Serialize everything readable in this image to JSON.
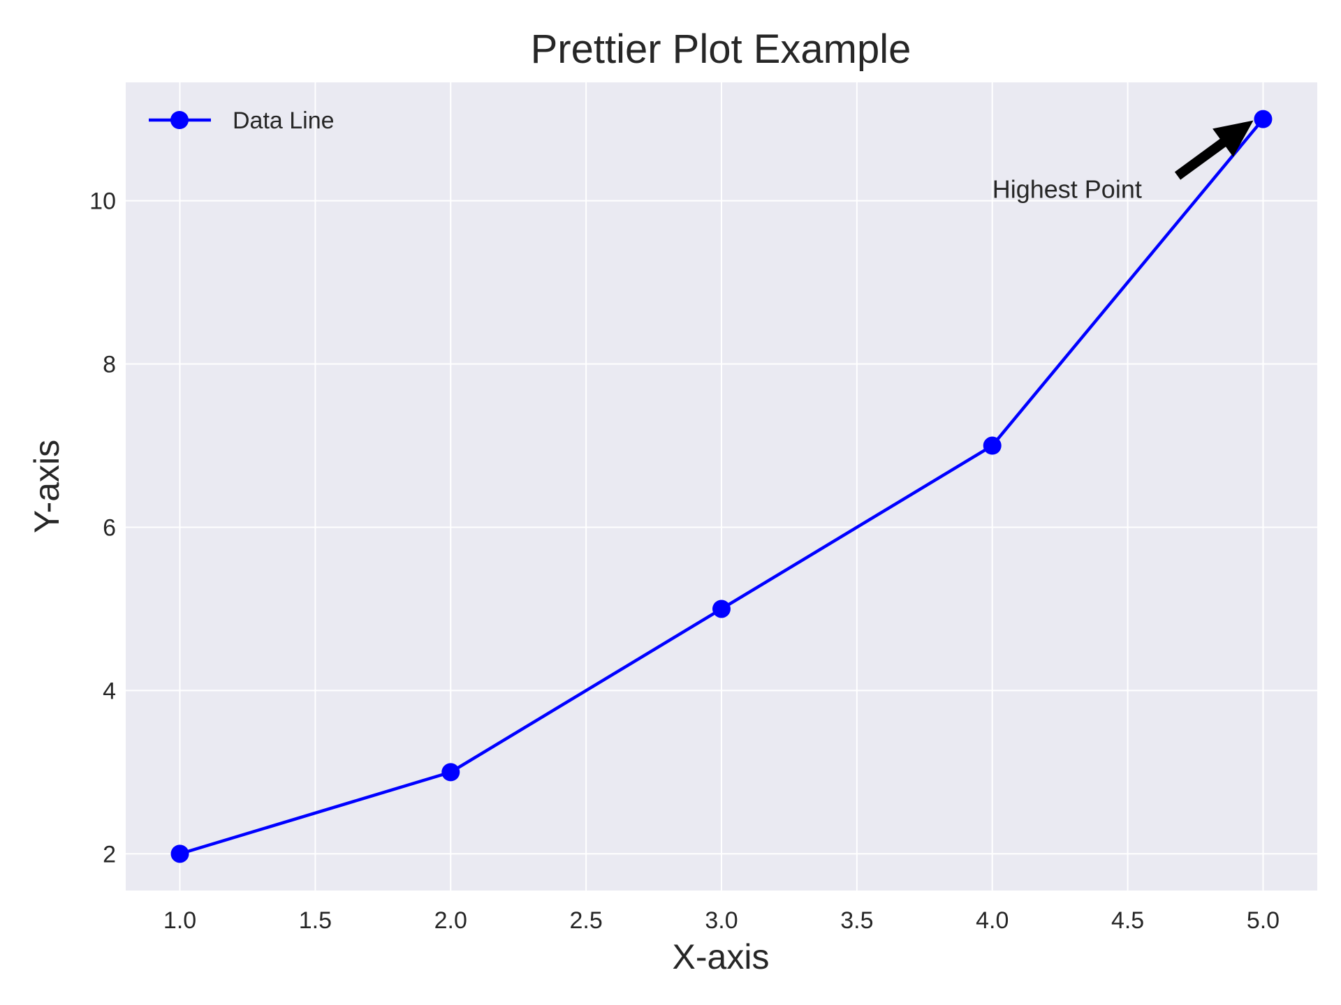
{
  "chart_data": {
    "type": "line",
    "title": "Prettier Plot Example",
    "xlabel": "X-axis",
    "ylabel": "Y-axis",
    "x": [
      1.0,
      2.0,
      3.0,
      4.0,
      5.0
    ],
    "series": [
      {
        "name": "Data Line",
        "values": [
          2,
          3,
          5,
          7,
          11
        ],
        "color": "#0000ff",
        "marker": "circle"
      }
    ],
    "xlim": [
      0.8,
      5.2
    ],
    "ylim": [
      1.55,
      11.45
    ],
    "xticks": [
      1.0,
      1.5,
      2.0,
      2.5,
      3.0,
      3.5,
      4.0,
      4.5,
      5.0
    ],
    "xtick_labels": [
      "1.0",
      "1.5",
      "2.0",
      "2.5",
      "3.0",
      "3.5",
      "4.0",
      "4.5",
      "5.0"
    ],
    "yticks": [
      2,
      4,
      6,
      8,
      10
    ],
    "ytick_labels": [
      "2",
      "4",
      "6",
      "8",
      "10"
    ],
    "grid": true,
    "legend_placement": "top-left",
    "plot_background": "#eaeaf2",
    "grid_color": "#ffffff",
    "annotation": {
      "text": "Highest Point",
      "point": [
        5.0,
        11.0
      ],
      "text_position": [
        4.0,
        10.0
      ],
      "arrow_color": "#000000"
    }
  }
}
